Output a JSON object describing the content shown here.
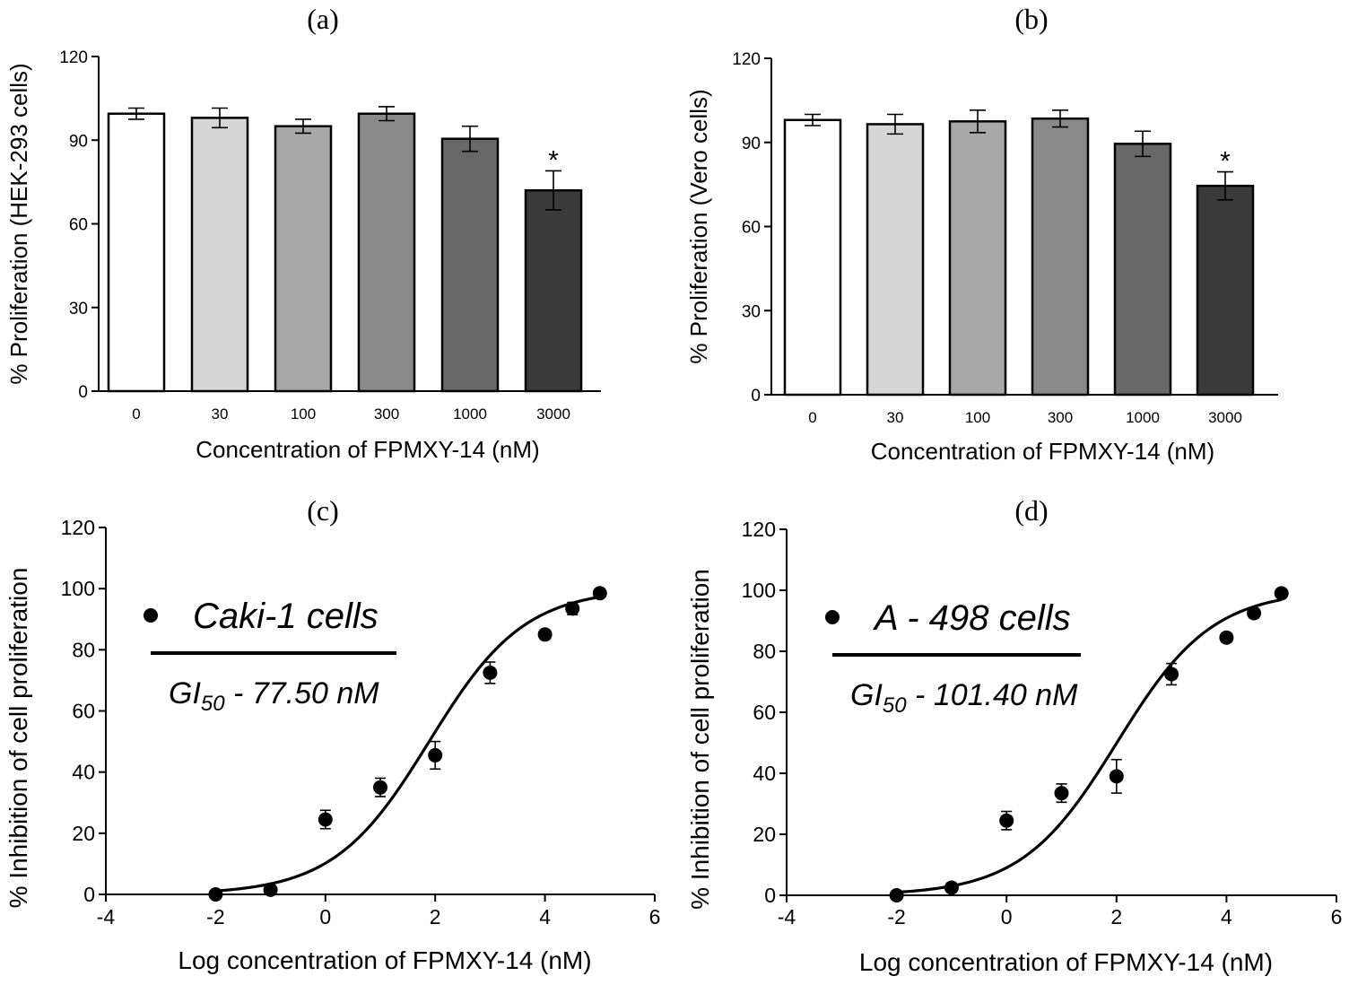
{
  "chart_data": [
    {
      "id": "a",
      "panel_label": "(a)",
      "type": "bar",
      "xlabel": "Concentration of FPMXY-14 (nM)",
      "ylabel": "% Proliferation (HEK-293 cells)",
      "categories": [
        "0",
        "30",
        "100",
        "300",
        "1000",
        "3000"
      ],
      "values": [
        99.5,
        98,
        95,
        99.5,
        90.5,
        72
      ],
      "errors": [
        2,
        3.5,
        2.5,
        2.5,
        4.5,
        7
      ],
      "fills": [
        "#ffffff",
        "#d6d6d6",
        "#a8a8a8",
        "#8a8a8a",
        "#686868",
        "#3a3a3a"
      ],
      "significance": [
        "",
        "",
        "",
        "",
        "",
        "*"
      ],
      "ylim": [
        0,
        120
      ],
      "yticks": [
        "0",
        "30",
        "60",
        "90",
        "120"
      ]
    },
    {
      "id": "b",
      "panel_label": "(b)",
      "type": "bar",
      "xlabel": "Concentration of FPMXY-14 (nM)",
      "ylabel": "% Proliferation (Vero cells)",
      "categories": [
        "0",
        "30",
        "100",
        "300",
        "1000",
        "3000"
      ],
      "values": [
        98,
        96.5,
        97.5,
        98.5,
        89.5,
        74.5
      ],
      "errors": [
        2,
        3.5,
        4,
        3,
        4.5,
        5
      ],
      "fills": [
        "#ffffff",
        "#d6d6d6",
        "#a8a8a8",
        "#8a8a8a",
        "#686868",
        "#3a3a3a"
      ],
      "significance": [
        "",
        "",
        "",
        "",
        "",
        "*"
      ],
      "ylim": [
        0,
        120
      ],
      "yticks": [
        "0",
        "30",
        "60",
        "90",
        "120"
      ]
    },
    {
      "id": "c",
      "panel_label": "(c)",
      "type": "scatter",
      "xlabel": "Log concentration of FPMXY-14 (nM)",
      "ylabel": "% Inhibition of cell proliferation",
      "legend_label": "Caki-1 cells",
      "annotation_prefix": "GI",
      "annotation_subscript": "50",
      "annotation_suffix": " - 77.50 nM",
      "points": [
        {
          "x": -2,
          "y": 0,
          "err": 0
        },
        {
          "x": -1,
          "y": 1.5,
          "err": 0
        },
        {
          "x": 0,
          "y": 24.5,
          "err": 3
        },
        {
          "x": 1,
          "y": 35,
          "err": 3
        },
        {
          "x": 2,
          "y": 45.5,
          "err": 4.5
        },
        {
          "x": 3,
          "y": 72.5,
          "err": 3.5
        },
        {
          "x": 4,
          "y": 85,
          "err": 1.5
        },
        {
          "x": 4.5,
          "y": 93.5,
          "err": 2
        },
        {
          "x": 5,
          "y": 98.5,
          "err": 1
        }
      ],
      "fit": {
        "bottom": 0,
        "top": 100,
        "logEC50": 1.89,
        "hill": 0.5,
        "x_start": -2,
        "x_end": 5
      },
      "xlim": [
        -4,
        6
      ],
      "ylim": [
        0,
        120
      ],
      "xticks": [
        "-4",
        "-2",
        "0",
        "2",
        "4",
        "6"
      ],
      "yticks": [
        "0",
        "20",
        "40",
        "60",
        "80",
        "100",
        "120"
      ]
    },
    {
      "id": "d",
      "panel_label": "(d)",
      "type": "scatter",
      "xlabel": "Log concentration of FPMXY-14 (nM)",
      "ylabel": "% Inhibition of cell proliferation",
      "legend_label": "A - 498 cells",
      "annotation_prefix": "GI",
      "annotation_subscript": "50",
      "annotation_suffix": " - 101.40 nM",
      "points": [
        {
          "x": -2,
          "y": 0,
          "err": 0
        },
        {
          "x": -1,
          "y": 2.5,
          "err": 1.5
        },
        {
          "x": 0,
          "y": 24.5,
          "err": 3
        },
        {
          "x": 1,
          "y": 33.5,
          "err": 3
        },
        {
          "x": 2,
          "y": 39,
          "err": 5.5
        },
        {
          "x": 3,
          "y": 72.5,
          "err": 3.5
        },
        {
          "x": 4,
          "y": 84.5,
          "err": 1.5
        },
        {
          "x": 4.5,
          "y": 92.5,
          "err": 1.5
        },
        {
          "x": 5,
          "y": 99,
          "err": 1
        }
      ],
      "fit": {
        "bottom": 0,
        "top": 100,
        "logEC50": 2.006,
        "hill": 0.5,
        "x_start": -2,
        "x_end": 5
      },
      "xlim": [
        -4,
        6
      ],
      "ylim": [
        0,
        120
      ],
      "xticks": [
        "-4",
        "-2",
        "0",
        "2",
        "4",
        "6"
      ],
      "yticks": [
        "0",
        "20",
        "40",
        "60",
        "80",
        "100",
        "120"
      ]
    }
  ]
}
